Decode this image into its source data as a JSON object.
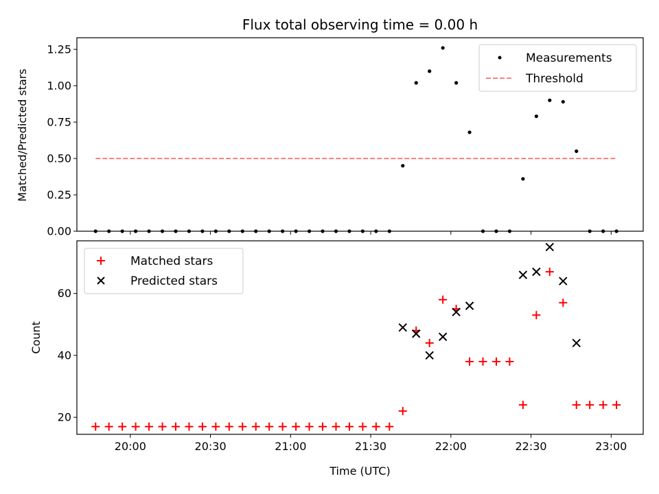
{
  "chart_data": [
    {
      "type": "scatter",
      "title": "Flux total observing time = 0.00 h",
      "ylabel": "Matched/Predicted stars",
      "ylim": [
        0,
        1.33
      ],
      "yticks": [
        "0.00",
        "0.25",
        "0.50",
        "0.75",
        "1.00",
        "1.25"
      ],
      "grid": false,
      "legend_position": "top-right",
      "series": [
        {
          "name": "Measurements",
          "marker": "dot",
          "color": "#000000",
          "x": [
            "19:47",
            "19:52",
            "19:57",
            "20:02",
            "20:07",
            "20:12",
            "20:17",
            "20:22",
            "20:27",
            "20:32",
            "20:37",
            "20:42",
            "20:47",
            "20:52",
            "20:57",
            "21:02",
            "21:07",
            "21:12",
            "21:17",
            "21:22",
            "21:27",
            "21:32",
            "21:37",
            "21:42",
            "21:47",
            "21:52",
            "21:57",
            "22:02",
            "22:07",
            "22:12",
            "22:17",
            "22:22",
            "22:27",
            "22:32",
            "22:37",
            "22:42",
            "22:47",
            "22:52",
            "22:57",
            "23:02"
          ],
          "y": [
            0,
            0,
            0,
            0,
            0,
            0,
            0,
            0,
            0,
            0,
            0,
            0,
            0,
            0,
            0,
            0,
            0,
            0,
            0,
            0,
            0,
            0,
            0,
            0.45,
            1.02,
            1.1,
            1.26,
            1.02,
            0.68,
            0,
            0,
            0,
            0.36,
            0.79,
            0.9,
            0.89,
            0.55,
            0,
            0,
            0
          ]
        },
        {
          "name": "Threshold",
          "style": "dashed",
          "color": "#ff7f7f",
          "x": [
            "19:47",
            "23:02"
          ],
          "y": [
            0.5,
            0.5
          ]
        }
      ]
    },
    {
      "type": "scatter",
      "xlabel": "Time (UTC)",
      "ylabel": "Count",
      "xlim": [
        "19:40",
        "23:12"
      ],
      "ylim": [
        14.5,
        77
      ],
      "xticks": [
        "20:00",
        "20:30",
        "21:00",
        "21:30",
        "22:00",
        "22:30",
        "23:00"
      ],
      "yticks": [
        "20",
        "40",
        "60"
      ],
      "grid": false,
      "legend_position": "top-left",
      "series": [
        {
          "name": "Matched stars",
          "marker": "plus",
          "color": "#ff0000",
          "x": [
            "19:47",
            "19:52",
            "19:57",
            "20:02",
            "20:07",
            "20:12",
            "20:17",
            "20:22",
            "20:27",
            "20:32",
            "20:37",
            "20:42",
            "20:47",
            "20:52",
            "20:57",
            "21:02",
            "21:07",
            "21:12",
            "21:17",
            "21:22",
            "21:27",
            "21:32",
            "21:37",
            "21:42",
            "21:47",
            "21:52",
            "21:57",
            "22:02",
            "22:07",
            "22:12",
            "22:17",
            "22:22",
            "22:27",
            "22:32",
            "22:37",
            "22:42",
            "22:47",
            "22:52",
            "22:57",
            "23:02"
          ],
          "y": [
            17,
            17,
            17,
            17,
            17,
            17,
            17,
            17,
            17,
            17,
            17,
            17,
            17,
            17,
            17,
            17,
            17,
            17,
            17,
            17,
            17,
            17,
            17,
            22,
            48,
            44,
            58,
            55,
            38,
            38,
            38,
            38,
            24,
            53,
            67,
            57,
            24,
            24,
            24,
            24
          ]
        },
        {
          "name": "Predicted stars",
          "marker": "x",
          "color": "#000000",
          "x": [
            "21:42",
            "21:47",
            "21:52",
            "21:57",
            "22:02",
            "22:07",
            "22:27",
            "22:32",
            "22:37",
            "22:42",
            "22:47"
          ],
          "y": [
            49,
            47,
            40,
            46,
            54,
            56,
            66,
            67,
            75,
            64,
            44
          ]
        }
      ]
    }
  ]
}
